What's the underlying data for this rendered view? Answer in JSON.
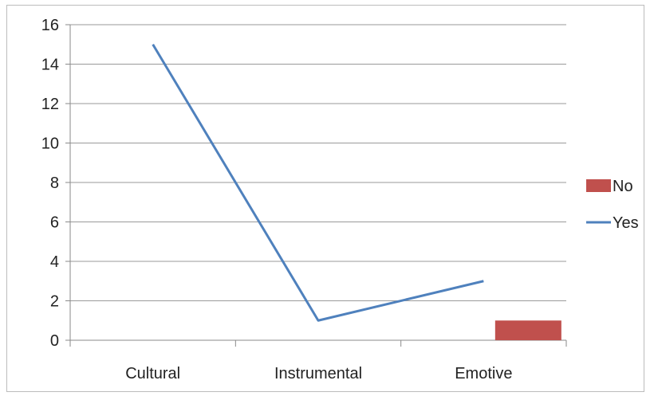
{
  "chart_data": {
    "type": "line",
    "categories": [
      "Cultural",
      "Instrumental",
      "Emotive"
    ],
    "series": [
      {
        "name": "No",
        "type": "bar",
        "values": [
          0,
          0,
          1
        ],
        "color": "#c0504d"
      },
      {
        "name": "Yes",
        "type": "line",
        "values": [
          15,
          1,
          3
        ],
        "color": "#4f81bd"
      }
    ],
    "y_ticks": [
      "0",
      "2",
      "4",
      "6",
      "8",
      "10",
      "12",
      "14",
      "16"
    ],
    "ylim": [
      0,
      16
    ],
    "grid": true,
    "legend_position": "right"
  }
}
